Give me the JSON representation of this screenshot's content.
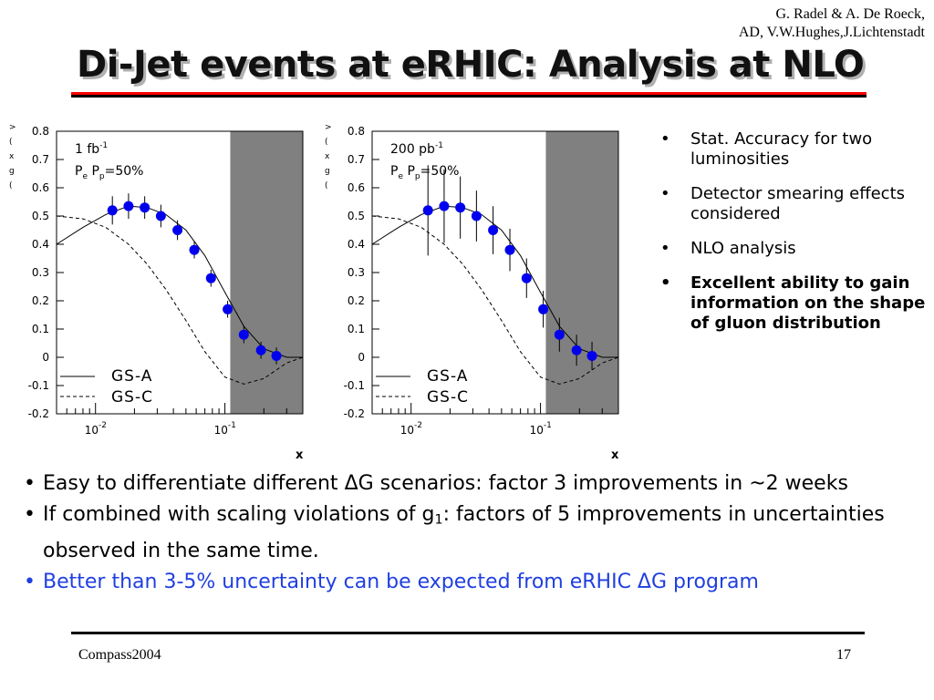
{
  "authors": {
    "line1": "G. Radel & A. De Roeck,",
    "line2": "AD, V.W.Hughes,J.Lichtenstadt"
  },
  "title": "Di-Jet events at eRHIC: Analysis at NLO",
  "plots": [
    {
      "lum_prefix": "1 fb",
      "lum_exp": "-1",
      "pol_label": "P",
      "pol_mid": "P",
      "pol_tail": "=50%",
      "pol_sub1": "e",
      "pol_sub2": "p"
    },
    {
      "lum_prefix": "200 pb",
      "lum_exp": "-1",
      "pol_label": "P",
      "pol_mid": "P",
      "pol_tail": "=50%",
      "pol_sub1": "e",
      "pol_sub2": "p"
    }
  ],
  "chart_data": [
    {
      "type": "scatter",
      "title": "1 fb-1  Pe Pp=50%",
      "xlabel": "x",
      "ylabel": ">(x)/g(x)",
      "xscale": "log",
      "xlim": [
        0.005,
        0.4
      ],
      "ylim": [
        -0.2,
        0.8
      ],
      "y_ticks": [
        "0.8",
        "0.7",
        "0.6",
        "0.5",
        "0.4",
        "0.3",
        "0.2",
        "0.1",
        "0",
        "-0.1",
        "-0.2"
      ],
      "x_tick_labels": [
        {
          "base": "10",
          "exp": "-2"
        },
        {
          "base": "10",
          "exp": "-1"
        }
      ],
      "shaded_x_from": 0.11,
      "legend": [
        "GS-A",
        "GS-C"
      ],
      "series": [
        {
          "name": "data",
          "x": [
            0.0135,
            0.018,
            0.024,
            0.032,
            0.043,
            0.058,
            0.078,
            0.105,
            0.14,
            0.19,
            0.25
          ],
          "y": [
            0.52,
            0.535,
            0.53,
            0.5,
            0.45,
            0.38,
            0.28,
            0.17,
            0.08,
            0.025,
            0.005
          ],
          "err": [
            0.05,
            0.045,
            0.04,
            0.04,
            0.035,
            0.03,
            0.03,
            0.03,
            0.03,
            0.03,
            0.03
          ]
        },
        {
          "name": "GS-A",
          "x": [
            0.005,
            0.008,
            0.012,
            0.018,
            0.025,
            0.035,
            0.05,
            0.07,
            0.1,
            0.14,
            0.2,
            0.3,
            0.4
          ],
          "y": [
            0.4,
            0.46,
            0.505,
            0.535,
            0.53,
            0.505,
            0.45,
            0.36,
            0.23,
            0.11,
            0.03,
            0.0,
            0.0
          ]
        },
        {
          "name": "GS-C",
          "x": [
            0.005,
            0.008,
            0.012,
            0.018,
            0.025,
            0.035,
            0.05,
            0.07,
            0.1,
            0.14,
            0.2,
            0.3,
            0.4
          ],
          "y": [
            0.5,
            0.49,
            0.46,
            0.4,
            0.33,
            0.24,
            0.13,
            0.02,
            -0.07,
            -0.095,
            -0.075,
            -0.02,
            0.0
          ]
        }
      ]
    },
    {
      "type": "scatter",
      "title": "200 pb-1  Pe Pp=50%",
      "xlabel": "x",
      "ylabel": ">(x)/g(x)",
      "xscale": "log",
      "xlim": [
        0.005,
        0.4
      ],
      "ylim": [
        -0.2,
        0.8
      ],
      "y_ticks": [
        "0.8",
        "0.7",
        "0.6",
        "0.5",
        "0.4",
        "0.3",
        "0.2",
        "0.1",
        "0",
        "-0.1",
        "-0.2"
      ],
      "x_tick_labels": [
        {
          "base": "10",
          "exp": "-2"
        },
        {
          "base": "10",
          "exp": "-1"
        }
      ],
      "shaded_x_from": 0.11,
      "legend": [
        "GS-A",
        "GS-C"
      ],
      "series": [
        {
          "name": "data",
          "x": [
            0.0135,
            0.018,
            0.024,
            0.032,
            0.043,
            0.058,
            0.078,
            0.105,
            0.14,
            0.19,
            0.25
          ],
          "y": [
            0.52,
            0.535,
            0.53,
            0.5,
            0.45,
            0.38,
            0.28,
            0.17,
            0.08,
            0.025,
            0.005
          ],
          "err": [
            0.16,
            0.13,
            0.11,
            0.09,
            0.085,
            0.075,
            0.07,
            0.065,
            0.06,
            0.055,
            0.05
          ]
        },
        {
          "name": "GS-A",
          "x": [
            0.005,
            0.008,
            0.012,
            0.018,
            0.025,
            0.035,
            0.05,
            0.07,
            0.1,
            0.14,
            0.2,
            0.3,
            0.4
          ],
          "y": [
            0.4,
            0.46,
            0.505,
            0.535,
            0.53,
            0.505,
            0.45,
            0.36,
            0.23,
            0.11,
            0.03,
            0.0,
            0.0
          ]
        },
        {
          "name": "GS-C",
          "x": [
            0.005,
            0.008,
            0.012,
            0.018,
            0.025,
            0.035,
            0.05,
            0.07,
            0.1,
            0.14,
            0.2,
            0.3,
            0.4
          ],
          "y": [
            0.5,
            0.49,
            0.46,
            0.4,
            0.33,
            0.24,
            0.13,
            0.02,
            -0.07,
            -0.095,
            -0.075,
            -0.02,
            0.0
          ]
        }
      ]
    }
  ],
  "right_bullets": [
    {
      "text": "Stat. Accuracy for two luminosities",
      "bold": false
    },
    {
      "text": "Detector smearing effects considered",
      "bold": false
    },
    {
      "text": "NLO analysis",
      "bold": false
    },
    {
      "text": "Excellent ability to gain information on the shape of gluon distribution",
      "bold": true
    }
  ],
  "main_bullets": {
    "b1_pre": "Easy to differentiate different ",
    "delta": "Δ",
    "b1_post": "G scenarios: factor 3 improvements in ~2 weeks",
    "b2_pre": "If combined with scaling violations of g",
    "b2_sub": "1",
    "b2_post": ": factors of 5 improvements in uncertainties observed in the same time.",
    "b3_pre": "Better than 3-5% uncertainty can be expected from eRHIC ",
    "b3_post": "G program"
  },
  "bullet_char": "•",
  "footer": {
    "left": "Compass2004",
    "right": "17"
  },
  "colors": {
    "accent_red": "#ff0000",
    "data_blue": "#0000ee",
    "shade": "#808080",
    "text_blue": "#1f3fe0"
  }
}
